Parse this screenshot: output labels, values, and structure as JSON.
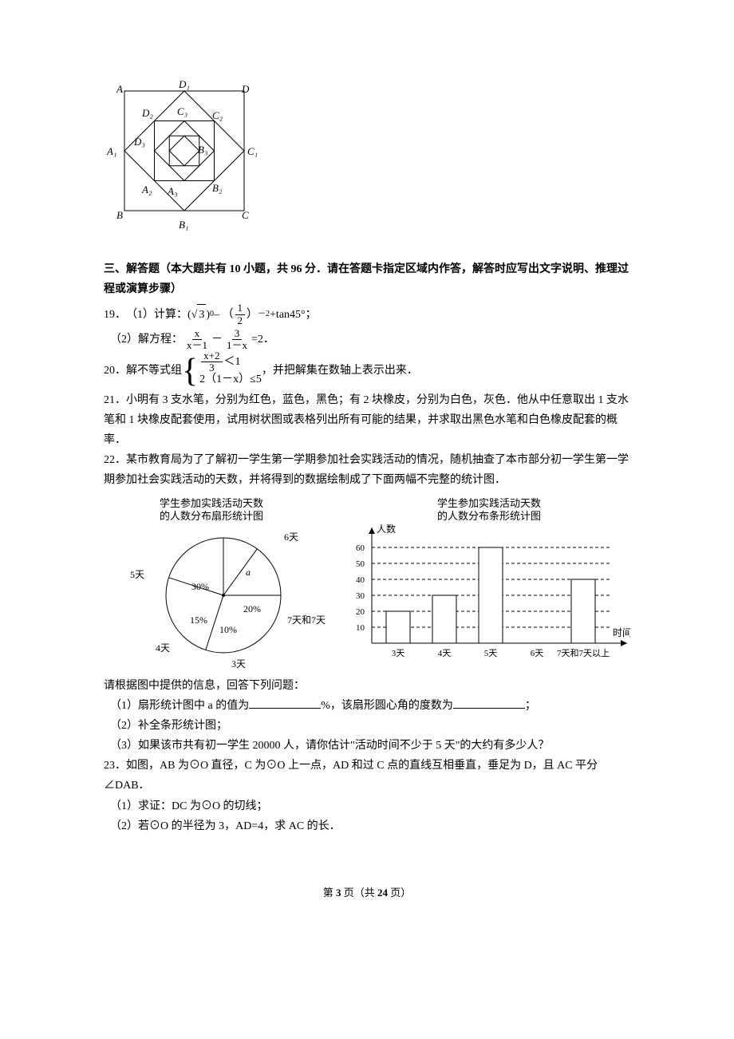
{
  "figure_nested_squares": {
    "type": "diagram",
    "outer_size": 170,
    "stroke": "#000000",
    "fill": "#ffffff",
    "labels": {
      "A": "A",
      "B": "B",
      "C": "C",
      "D": "D",
      "A1": "A₁",
      "B1": "B₁",
      "C1": "C₁",
      "D1": "D₁",
      "A2": "A₂",
      "B2": "B₂",
      "C2": "C₂",
      "D2": "D₂",
      "A3": "A₃",
      "B3": "B₃",
      "C3": "C₃",
      "D3": "D₃"
    }
  },
  "section3_title": "三、解答题（本大题共有 10 小题，共 96 分．请在答题卡指定区域内作答，解答时应写出文字说明、推理过程或演算步骤）",
  "p19": {
    "num": "19．",
    "part1_prefix": "（1）计算：(",
    "sqrt_val": "3",
    "part1_mid1": ") ",
    "exp0": "0",
    "part1_mid2": "– （",
    "half_num": "1",
    "half_den": "2",
    "part1_mid3": "）",
    "exp_neg2": "－2",
    "part1_suffix": "+tan45°；",
    "part2_prefix": "（2）解方程：",
    "f1_num": "x",
    "f1_den": "x－1",
    "minus": "－",
    "f2_num": "3",
    "f2_den": "1－x",
    "part2_suffix": "=2．"
  },
  "p20": {
    "num": "20．解不等式组",
    "row1_num": "x+2",
    "row1_den": "3",
    "row1_op": "＜1",
    "row2": "2（1－x）≤5",
    "suffix": "，并把解集在数轴上表示出来．"
  },
  "p21": "21．小明有 3 支水笔，分别为红色，蓝色，黑色；有 2 块橡皮，分别为白色，灰色．他从中任意取出 1 支水笔和 1 块橡皮配套使用，试用树状图或表格列出所有可能的结果，并求取出黑色水笔和白色橡皮配套的概率．",
  "p22": {
    "intro": "22．某市教育局为了了解初一学生第一学期参加社会实践活动的情况，随机抽查了本市部分初一学生第一学期参加社会实践活动的天数，并将得到的数据绘制成了下面两幅不完整的统计图．",
    "pie": {
      "type": "pie",
      "title_l1": "学生参加实践活动天数",
      "title_l2": "的人数分布扇形统计图",
      "slices": [
        {
          "label": "3天",
          "pct": 10,
          "color": "#ffffff",
          "text": "10%"
        },
        {
          "label": "4天",
          "pct": 15,
          "color": "#ffffff",
          "text": "15%"
        },
        {
          "label": "5天",
          "pct": 30,
          "color": "#ffffff",
          "text": "30%"
        },
        {
          "label": "6天",
          "pct": 25,
          "color": "#ffffff",
          "text": "a"
        },
        {
          "label": "7天和7天以上",
          "pct": 20,
          "color": "#ffffff",
          "text": "20%"
        }
      ],
      "stroke": "#000000",
      "title_fontsize": 13
    },
    "bar": {
      "type": "bar",
      "title_l1": "学生参加实践活动天数",
      "title_l2": "的人数分布条形统计图",
      "ylabel": "人数",
      "xlabel": "时间",
      "categories": [
        "3天",
        "4天",
        "5天",
        "6天",
        "7天和7天以上"
      ],
      "values": [
        20,
        30,
        60,
        null,
        40
      ],
      "ylim": [
        0,
        65
      ],
      "yticks": [
        10,
        20,
        30,
        40,
        50,
        60
      ],
      "bar_fill": "#ffffff",
      "bar_stroke": "#000000",
      "grid_dash": "4,3",
      "axis_color": "#000000",
      "title_fontsize": 13,
      "tick_fontsize": 11
    },
    "after": "请根据图中提供的信息，回答下列问题：",
    "q1_a": "（1）扇形统计图中 a 的值为",
    "q1_b": "%，该扇形圆心角的度数为",
    "q1_c": "；",
    "q2": "（2）补全条形统计图；",
    "q3": "（3）如果该市共有初一学生 20000 人，请你估计\"活动时间不少于 5 天\"的大约有多少人？"
  },
  "p23": {
    "l1": "23．如图，AB 为⊙O 直径，C 为⊙O 上一点，AD 和过 C 点的直线互相垂直，垂足为 D，且 AC 平分∠DAB．",
    "l2": "（1）求证：DC 为⊙O 的切线；",
    "l3": "（2）若⊙O 的半径为 3，AD=4，求 AC 的长．"
  },
  "footer": {
    "a": "第 ",
    "p": "3",
    "b": " 页（共 ",
    "t": "24",
    "c": " 页）"
  }
}
